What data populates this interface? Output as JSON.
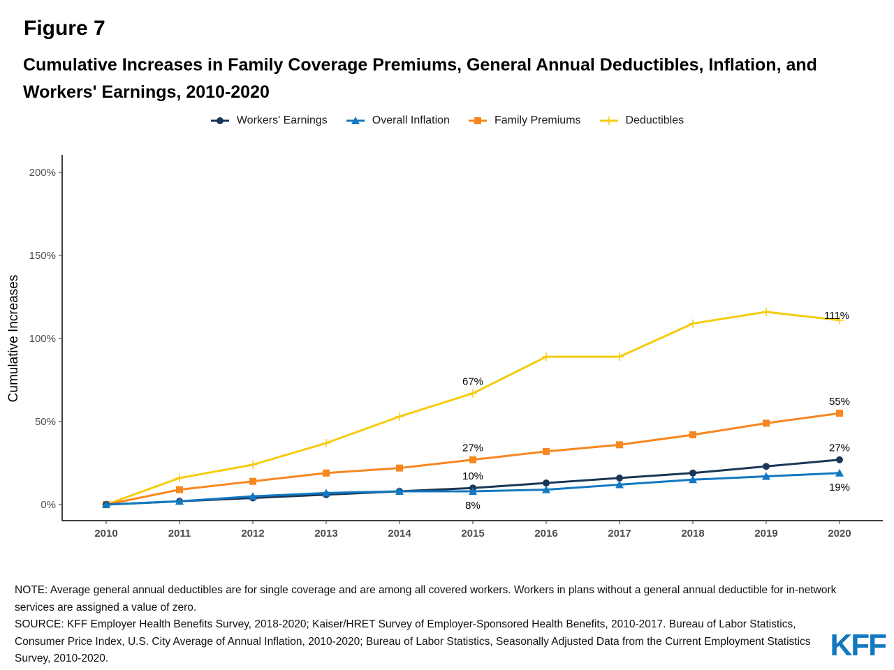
{
  "figure_label": "Figure 7",
  "title": "Cumulative Increases in Family Coverage Premiums, General Annual Deductibles, Inflation, and Workers' Earnings, 2010-2020",
  "note_lines": [
    "NOTE: Average general annual deductibles are for single coverage and are among all covered workers. Workers in plans without a general annual deductible for in-network services are assigned a value of zero.",
    "SOURCE: KFF Employer Health Benefits Survey, 2018-2020; Kaiser/HRET Survey of Employer-Sponsored Health Benefits, 2010-2017. Bureau of Labor Statistics, Consumer Price Index, U.S. City Average of Annual Inflation, 2010-2020; Bureau of Labor Statistics, Seasonally Adjusted Data from the Current Employment Statistics Survey, 2010-2020."
  ],
  "logo_text": "KFF",
  "chart_data": {
    "type": "line",
    "title": "Cumulative Increases in Family Coverage Premiums, General Annual Deductibles, Inflation, and Workers' Earnings, 2010-2020",
    "xlabel": "",
    "ylabel": "Cumulative Increases",
    "x": [
      "2010",
      "2011",
      "2012",
      "2013",
      "2014",
      "2015",
      "2016",
      "2017",
      "2018",
      "2019",
      "2020"
    ],
    "ylim": [
      0,
      200
    ],
    "yticks": [
      0,
      50,
      100,
      150,
      200
    ],
    "ytick_labels": [
      "0%",
      "50%",
      "100%",
      "150%",
      "200%"
    ],
    "grid": false,
    "legend_position": "top",
    "series": [
      {
        "name": "Workers' Earnings",
        "color": "#1b3556",
        "marker": "circle",
        "values": [
          0,
          2,
          4,
          6,
          8,
          10,
          13,
          16,
          19,
          23,
          27
        ]
      },
      {
        "name": "Overall Inflation",
        "color": "#1278c1",
        "marker": "triangle",
        "values": [
          0,
          2,
          5,
          7,
          8,
          8,
          9,
          12,
          15,
          17,
          19
        ]
      },
      {
        "name": "Family Premiums",
        "color": "#f7871f",
        "marker": "square",
        "values": [
          0,
          9,
          14,
          19,
          22,
          27,
          32,
          36,
          42,
          49,
          55
        ]
      },
      {
        "name": "Deductibles",
        "color": "#f5cc0f",
        "marker": "plus",
        "values": [
          0,
          16,
          24,
          37,
          53,
          67,
          89,
          89,
          109,
          116,
          111
        ]
      }
    ],
    "annotations": [
      {
        "series": "Deductibles",
        "x": "2015",
        "text": "67%",
        "pos": "above"
      },
      {
        "series": "Deductibles",
        "x": "2020",
        "text": "111%",
        "pos": "right"
      },
      {
        "series": "Family Premiums",
        "x": "2015",
        "text": "27%",
        "pos": "above"
      },
      {
        "series": "Family Premiums",
        "x": "2020",
        "text": "55%",
        "pos": "above"
      },
      {
        "series": "Workers' Earnings",
        "x": "2015",
        "text": "10%",
        "pos": "above"
      },
      {
        "series": "Workers' Earnings",
        "x": "2020",
        "text": "27%",
        "pos": "above"
      },
      {
        "series": "Overall Inflation",
        "x": "2015",
        "text": "8%",
        "pos": "below"
      },
      {
        "series": "Overall Inflation",
        "x": "2020",
        "text": "19%",
        "pos": "below"
      }
    ]
  }
}
